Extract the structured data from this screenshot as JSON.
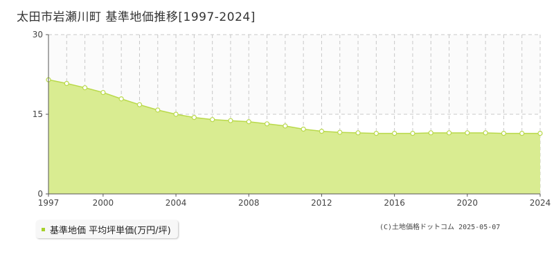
{
  "title": "太田市岩瀬川町 基準地価推移[1997-2024]",
  "chart_data": {
    "type": "area",
    "title": "太田市岩瀬川町 基準地価推移[1997-2024]",
    "xlabel": "",
    "ylabel": "",
    "x": [
      1997,
      1998,
      1999,
      2000,
      2001,
      2002,
      2003,
      2004,
      2005,
      2006,
      2007,
      2008,
      2009,
      2010,
      2011,
      2012,
      2013,
      2014,
      2015,
      2016,
      2017,
      2018,
      2019,
      2020,
      2021,
      2022,
      2023,
      2024
    ],
    "series": [
      {
        "name": "基準地価 平均坪単価(万円/坪)",
        "values": [
          21.5,
          20.8,
          20.0,
          19.1,
          17.9,
          16.8,
          15.8,
          15.0,
          14.4,
          14.0,
          13.8,
          13.6,
          13.2,
          12.8,
          12.2,
          11.8,
          11.6,
          11.5,
          11.4,
          11.4,
          11.4,
          11.5,
          11.5,
          11.5,
          11.5,
          11.4,
          11.4,
          11.4
        ]
      }
    ],
    "ylim": [
      0,
      30
    ],
    "yticks": [
      0,
      15,
      30
    ],
    "xlim": [
      1997,
      2024
    ],
    "xticks": [
      1997,
      2000,
      2004,
      2008,
      2012,
      2016,
      2020,
      2024
    ],
    "grid": true,
    "legend": "bottom-left",
    "colors": {
      "fill": "#d9ec91",
      "line": "#b9d94a",
      "marker_fill": "#ffffff",
      "marker_stroke": "#b9d94a",
      "grid": "#c8c8c8"
    }
  },
  "legend": {
    "label": "基準地価 平均坪単価(万円/坪)"
  },
  "copyright": "(C)土地価格ドットコム 2025-05-07"
}
